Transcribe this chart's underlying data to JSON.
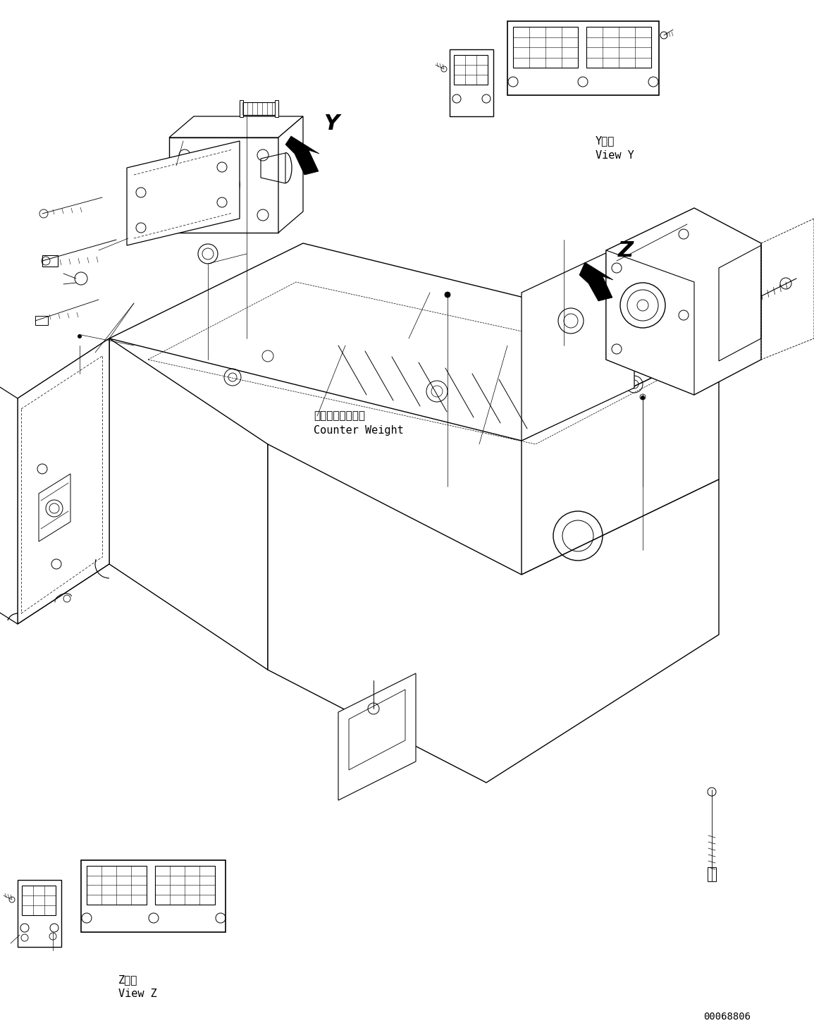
{
  "figure_width": 11.55,
  "figure_height": 14.58,
  "dpi": 100,
  "bg_color": "#ffffff",
  "line_color": "#000000",
  "doc_number": "00068806",
  "label_Y_kanji": "Y　視",
  "label_Y_en": "View Y",
  "label_Z_kanji": "Z　視",
  "label_Z_en": "View Z",
  "label_counter_weight_ja": "カウンタウェイト",
  "label_counter_weight_en": "Counter Weight",
  "arrow_Y_label": "Y",
  "arrow_Z_label": "Z"
}
